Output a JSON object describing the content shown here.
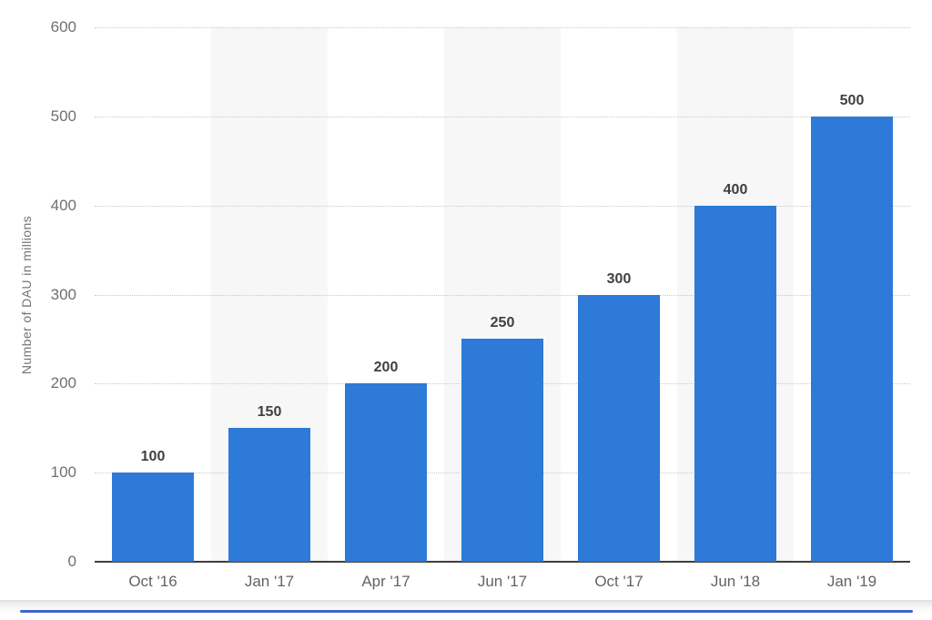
{
  "chart_data": {
    "type": "bar",
    "categories": [
      "Oct '16",
      "Jan '17",
      "Apr '17",
      "Jun '17",
      "Oct '17",
      "Jun '18",
      "Jan '19"
    ],
    "values": [
      100,
      150,
      200,
      250,
      300,
      400,
      500
    ],
    "data_labels": [
      "100",
      "150",
      "200",
      "250",
      "300",
      "400",
      "500"
    ],
    "title": "",
    "xlabel": "",
    "ylabel": "Number of DAU in millions",
    "ylim": [
      0,
      600
    ],
    "yticks": [
      0,
      100,
      200,
      300,
      400,
      500,
      600
    ],
    "grid": "horizontal dotted lines at each y tick",
    "legend": "none",
    "colors": {
      "bar": "#2d7ad8",
      "column_band": "#f7f7f7",
      "gridline": "#c9c9c9",
      "axis_line": "#3d3d3d",
      "value_label": "#404040",
      "tick_label": "#707070",
      "bottom_line": "#3d66cc"
    }
  }
}
